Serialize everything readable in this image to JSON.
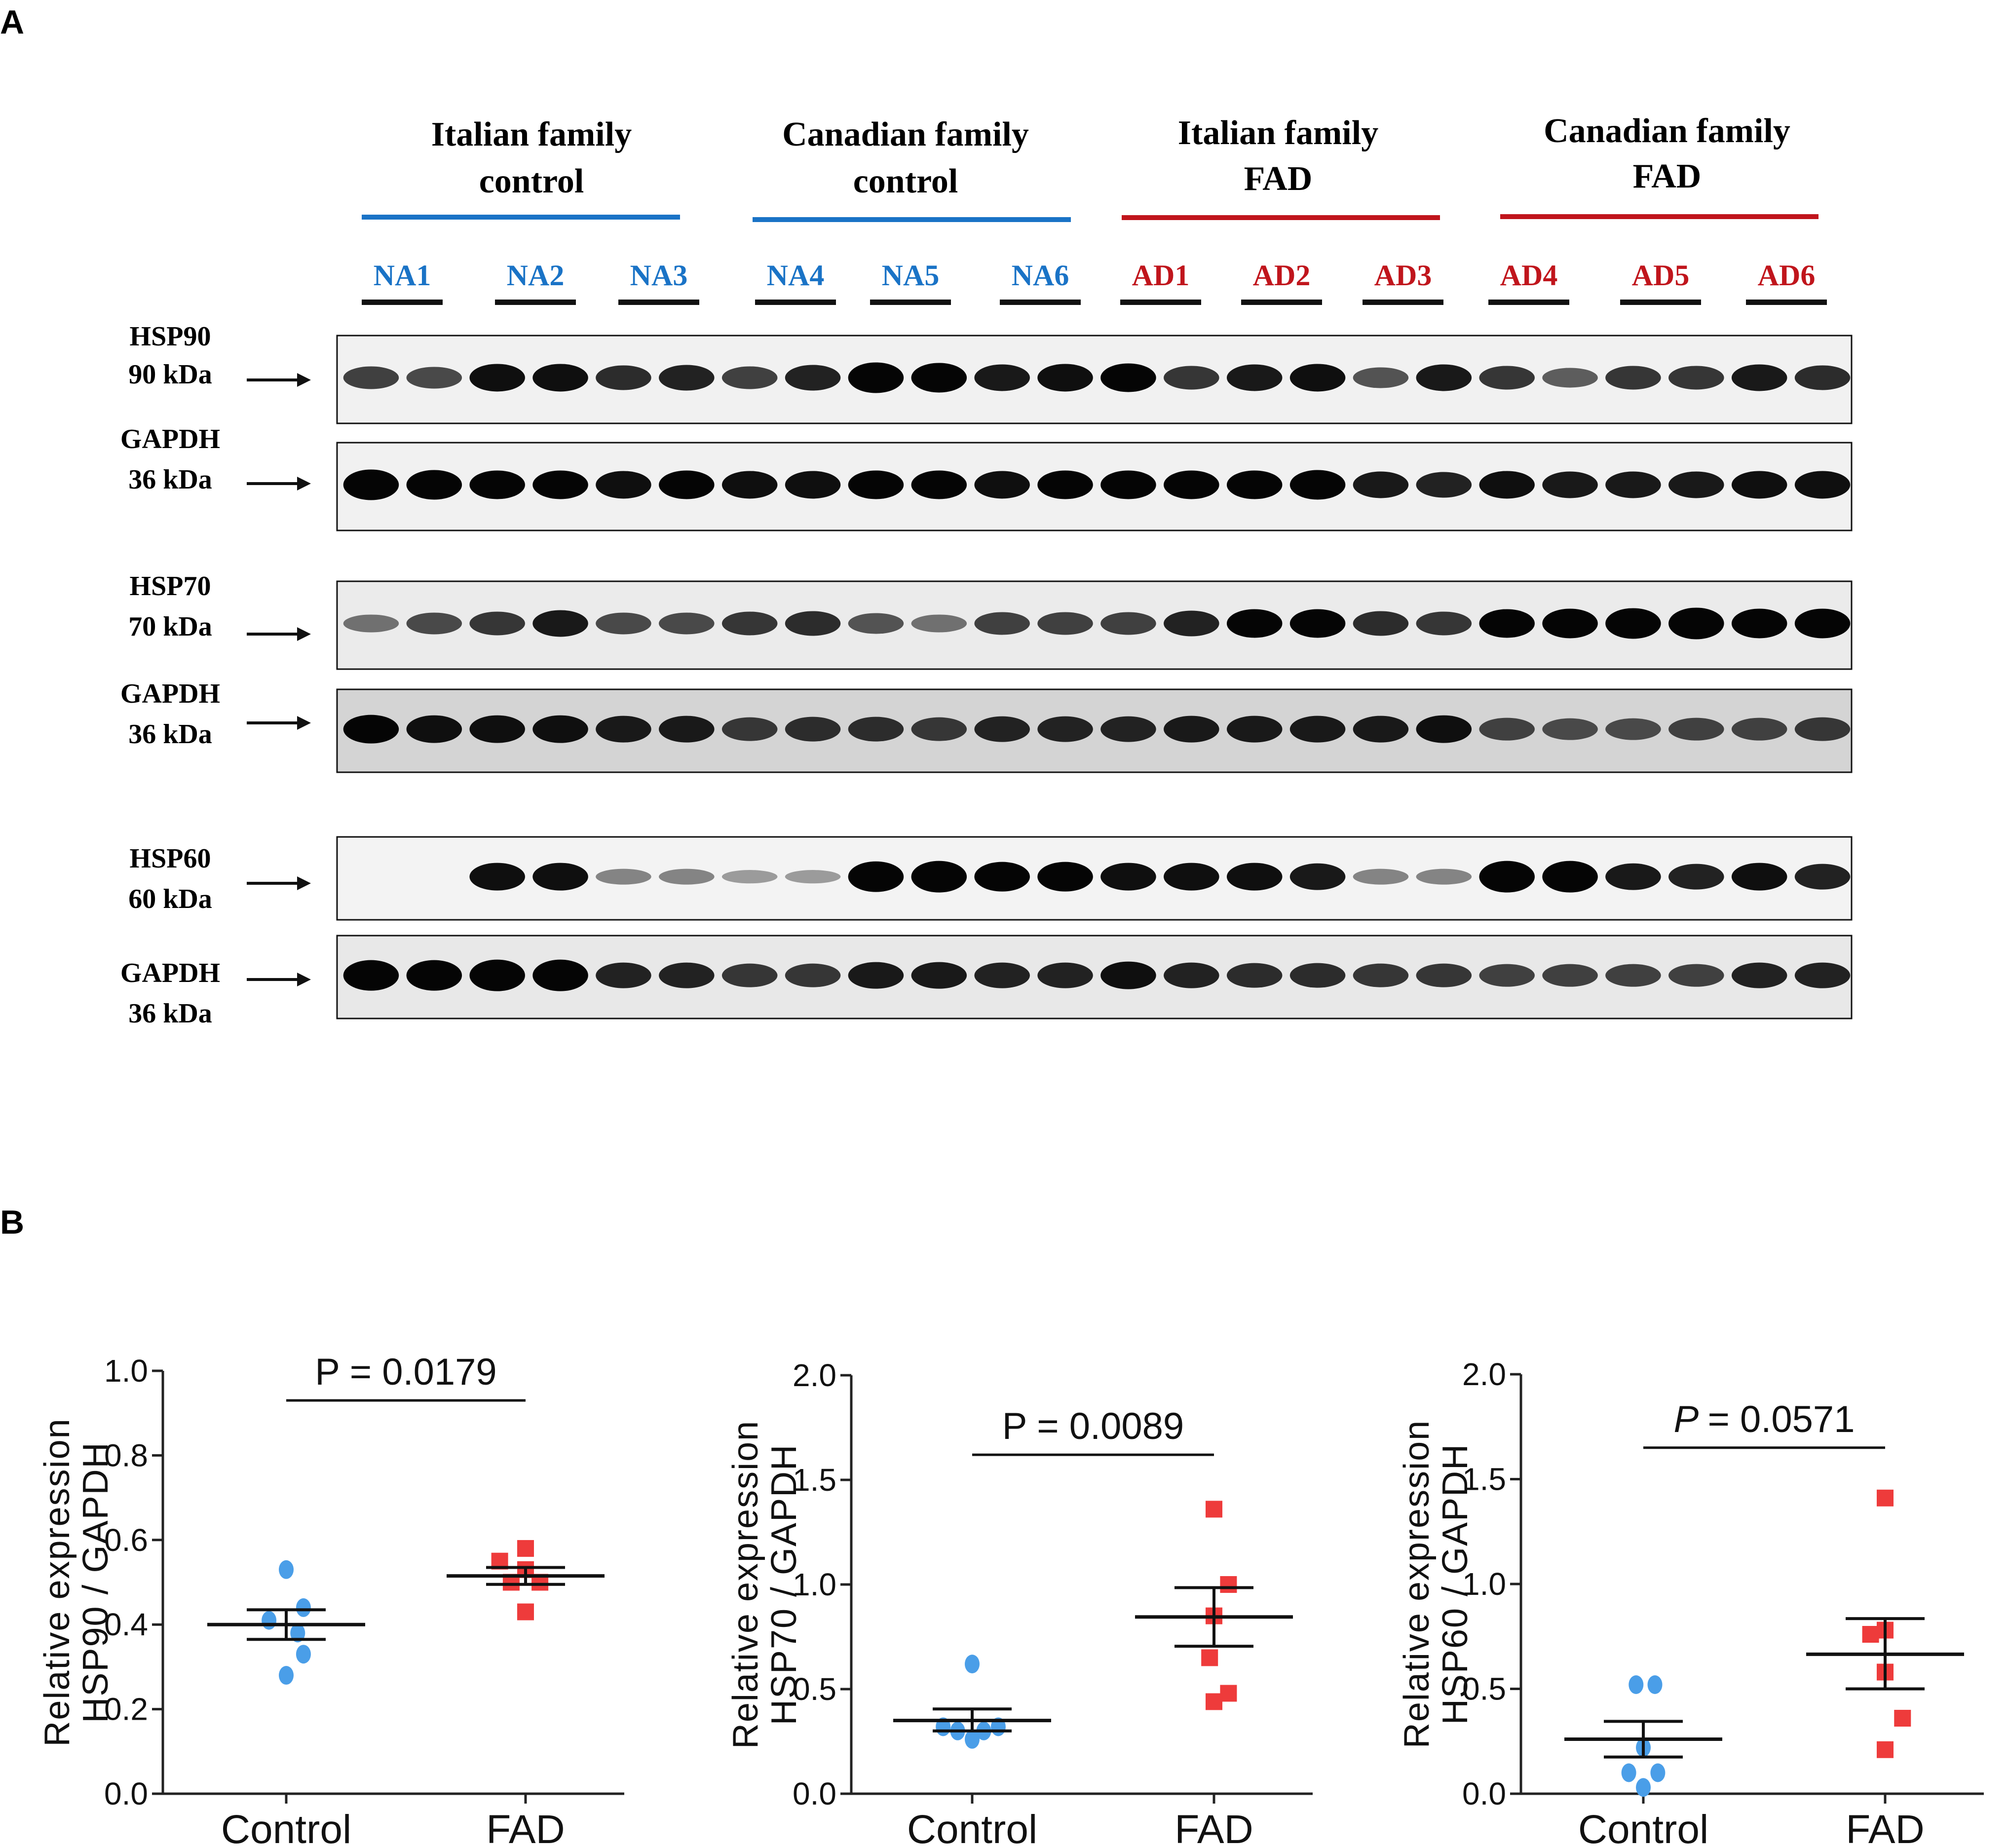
{
  "panel_a": {
    "letter": "A",
    "groups": [
      {
        "line1": "Italian family",
        "line2": "control",
        "color": "#1a73c6"
      },
      {
        "line1": "Canadian family",
        "line2": "control",
        "color": "#1a73c6"
      },
      {
        "line1": "Italian family",
        "line2": "FAD",
        "color": "#c0151c"
      },
      {
        "line1": "Canadian family",
        "line2": "FAD",
        "color": "#c0151c"
      }
    ],
    "lanes": [
      {
        "label": "NA1",
        "color": "#1a73c6"
      },
      {
        "label": "NA2",
        "color": "#1a73c6"
      },
      {
        "label": "NA3",
        "color": "#1a73c6"
      },
      {
        "label": "NA4",
        "color": "#1a73c6"
      },
      {
        "label": "NA5",
        "color": "#1a73c6"
      },
      {
        "label": "NA6",
        "color": "#1a73c6"
      },
      {
        "label": "AD1",
        "color": "#c0151c"
      },
      {
        "label": "AD2",
        "color": "#c0151c"
      },
      {
        "label": "AD3",
        "color": "#c0151c"
      },
      {
        "label": "AD4",
        "color": "#c0151c"
      },
      {
        "label": "AD5",
        "color": "#c0151c"
      },
      {
        "label": "AD6",
        "color": "#c0151c"
      }
    ],
    "blots": [
      {
        "protein": "HSP90",
        "size": "90 kDa",
        "background": "#f1f1f1",
        "intensities": [
          0.55,
          0.5,
          0.8,
          0.8,
          0.65,
          0.7,
          0.55,
          0.7,
          0.95,
          0.9,
          0.75,
          0.8,
          0.85,
          0.6,
          0.75,
          0.8,
          0.45,
          0.75,
          0.6,
          0.4,
          0.6,
          0.6,
          0.75,
          0.65
        ]
      },
      {
        "protein": "GAPDH",
        "size": "36 kDa",
        "background": "#f1f1f1",
        "intensities": [
          0.95,
          0.9,
          0.85,
          0.85,
          0.8,
          0.85,
          0.8,
          0.8,
          0.85,
          0.85,
          0.8,
          0.85,
          0.85,
          0.85,
          0.85,
          0.9,
          0.75,
          0.7,
          0.8,
          0.75,
          0.75,
          0.75,
          0.8,
          0.8
        ]
      },
      {
        "protein": "HSP70",
        "size": "70 kDa",
        "background": "#ebebeb",
        "intensities": [
          0.3,
          0.5,
          0.6,
          0.75,
          0.5,
          0.5,
          0.6,
          0.65,
          0.45,
          0.3,
          0.55,
          0.55,
          0.55,
          0.7,
          0.85,
          0.85,
          0.65,
          0.6,
          0.85,
          0.9,
          0.95,
          1.0,
          0.9,
          0.9
        ]
      },
      {
        "protein": "GAPDH",
        "size": "36 kDa",
        "background": "#d4d4d4",
        "intensities": [
          0.85,
          0.8,
          0.8,
          0.8,
          0.75,
          0.75,
          0.6,
          0.65,
          0.65,
          0.6,
          0.7,
          0.7,
          0.7,
          0.75,
          0.75,
          0.75,
          0.75,
          0.8,
          0.55,
          0.5,
          0.5,
          0.55,
          0.55,
          0.6
        ]
      },
      {
        "protein": "HSP60",
        "size": "60 kDa",
        "background": "#f3f3f3",
        "intensities": [
          0.0,
          0.0,
          0.8,
          0.8,
          0.2,
          0.2,
          0.08,
          0.08,
          0.95,
          1.0,
          0.9,
          0.9,
          0.8,
          0.8,
          0.8,
          0.75,
          0.2,
          0.2,
          1.0,
          1.0,
          0.75,
          0.7,
          0.8,
          0.7
        ]
      },
      {
        "protein": "GAPDH",
        "size": "36 kDa",
        "background": "#e8e8e8",
        "intensities": [
          0.95,
          0.95,
          1.0,
          1.0,
          0.7,
          0.7,
          0.6,
          0.6,
          0.75,
          0.75,
          0.7,
          0.7,
          0.8,
          0.7,
          0.65,
          0.65,
          0.6,
          0.6,
          0.55,
          0.55,
          0.55,
          0.55,
          0.7,
          0.7
        ]
      }
    ]
  },
  "panel_b": {
    "letter": "B"
  },
  "chart_data": [
    {
      "type": "scatter",
      "title": "",
      "xlabel": "",
      "ylabel_line1": "Relative expression",
      "ylabel_line2": "HSP90 / GAPDH",
      "categories": [
        "Control",
        "FAD"
      ],
      "ylim": [
        0.0,
        1.0
      ],
      "yticks": [
        "0.0",
        "0.2",
        "0.4",
        "0.6",
        "0.8",
        "1.0"
      ],
      "ytick_values": [
        0.0,
        0.2,
        0.4,
        0.6,
        0.8,
        1.0
      ],
      "series": [
        {
          "name": "Control",
          "color": "#4a9ee8",
          "marker": "circle",
          "points": [
            {
              "dx": 0.0,
              "y": 0.53
            },
            {
              "dx": 0.12,
              "y": 0.44
            },
            {
              "dx": -0.12,
              "y": 0.41
            },
            {
              "dx": 0.08,
              "y": 0.38
            },
            {
              "dx": 0.12,
              "y": 0.33
            },
            {
              "dx": 0.0,
              "y": 0.28
            }
          ],
          "mean": 0.4,
          "sem_low": 0.365,
          "sem_high": 0.435
        },
        {
          "name": "FAD",
          "color": "#ee3b3b",
          "marker": "square",
          "points": [
            {
              "dx": -0.18,
              "y": 0.55
            },
            {
              "dx": 0.0,
              "y": 0.58
            },
            {
              "dx": 0.0,
              "y": 0.53
            },
            {
              "dx": -0.1,
              "y": 0.5
            },
            {
              "dx": 0.1,
              "y": 0.5
            },
            {
              "dx": 0.0,
              "y": 0.43
            }
          ],
          "mean": 0.515,
          "sem_low": 0.495,
          "sem_high": 0.535
        }
      ],
      "pvalue_label": "P = 0.0179",
      "pvalue_italic": false
    },
    {
      "type": "scatter",
      "title": "",
      "xlabel": "",
      "ylabel_line1": "Relative expression",
      "ylabel_line2": "HSP70 / GAPDH",
      "categories": [
        "Control",
        "FAD"
      ],
      "ylim": [
        0.0,
        2.0
      ],
      "yticks": [
        "0.0",
        "0.5",
        "1.0",
        "1.5",
        "2.0"
      ],
      "ytick_values": [
        0.0,
        0.5,
        1.0,
        1.5,
        2.0
      ],
      "series": [
        {
          "name": "Control",
          "color": "#4a9ee8",
          "marker": "circle",
          "points": [
            {
              "dx": 0.0,
              "y": 0.62
            },
            {
              "dx": -0.2,
              "y": 0.32
            },
            {
              "dx": 0.18,
              "y": 0.32
            },
            {
              "dx": -0.1,
              "y": 0.3
            },
            {
              "dx": 0.08,
              "y": 0.3
            },
            {
              "dx": 0.0,
              "y": 0.26
            }
          ],
          "mean": 0.35,
          "sem_low": 0.3,
          "sem_high": 0.405
        },
        {
          "name": "FAD",
          "color": "#ee3b3b",
          "marker": "square",
          "points": [
            {
              "dx": 0.0,
              "y": 1.36
            },
            {
              "dx": 0.1,
              "y": 1.0
            },
            {
              "dx": 0.0,
              "y": 0.85
            },
            {
              "dx": -0.03,
              "y": 0.65
            },
            {
              "dx": 0.1,
              "y": 0.48
            },
            {
              "dx": 0.0,
              "y": 0.44
            }
          ],
          "mean": 0.845,
          "sem_low": 0.705,
          "sem_high": 0.985
        }
      ],
      "pvalue_label": "P = 0.0089",
      "pvalue_italic": false
    },
    {
      "type": "scatter",
      "title": "",
      "xlabel": "",
      "ylabel_line1": "Relative expression",
      "ylabel_line2": "HSP60 / GAPDH",
      "categories": [
        "Control",
        "FAD"
      ],
      "ylim": [
        0.0,
        2.0
      ],
      "yticks": [
        "0.0",
        "0.5",
        "1.0",
        "1.5",
        "2.0"
      ],
      "ytick_values": [
        0.0,
        0.5,
        1.0,
        1.5,
        2.0
      ],
      "series": [
        {
          "name": "Control",
          "color": "#4a9ee8",
          "marker": "circle",
          "points": [
            {
              "dx": -0.05,
              "y": 0.52
            },
            {
              "dx": 0.08,
              "y": 0.52
            },
            {
              "dx": 0.0,
              "y": 0.22
            },
            {
              "dx": -0.1,
              "y": 0.1
            },
            {
              "dx": 0.1,
              "y": 0.1
            },
            {
              "dx": 0.0,
              "y": 0.03
            }
          ],
          "mean": 0.26,
          "sem_low": 0.175,
          "sem_high": 0.345
        },
        {
          "name": "FAD",
          "color": "#ee3b3b",
          "marker": "square",
          "points": [
            {
              "dx": 0.0,
              "y": 1.41
            },
            {
              "dx": -0.1,
              "y": 0.76
            },
            {
              "dx": 0.0,
              "y": 0.78
            },
            {
              "dx": 0.0,
              "y": 0.58
            },
            {
              "dx": 0.12,
              "y": 0.36
            },
            {
              "dx": 0.0,
              "y": 0.21
            }
          ],
          "mean": 0.665,
          "sem_low": 0.5,
          "sem_high": 0.835
        }
      ],
      "pvalue_label": "= 0.0571",
      "pvalue_prefix": "P",
      "pvalue_italic": true
    }
  ]
}
